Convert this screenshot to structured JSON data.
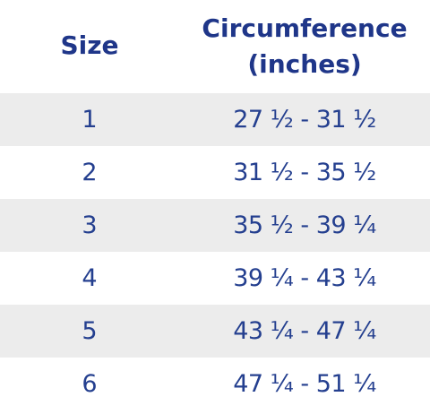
{
  "header": {
    "size": "Size",
    "circumference_line1": "Circumference",
    "circumference_line2": "(inches)"
  },
  "rows": [
    {
      "size": "1",
      "circumference": "27 ½ - 31 ½"
    },
    {
      "size": "2",
      "circumference": "31 ½ - 35 ½"
    },
    {
      "size": "3",
      "circumference": "35 ½ - 39 ¼"
    },
    {
      "size": "4",
      "circumference": "39 ¼ - 43 ¼"
    },
    {
      "size": "5",
      "circumference": "43 ¼ - 47 ¼"
    },
    {
      "size": "6",
      "circumference": "47 ¼ - 51 ¼"
    }
  ],
  "colors": {
    "text": "#1f3689",
    "stripe": "#ececec",
    "background": "#ffffff"
  }
}
